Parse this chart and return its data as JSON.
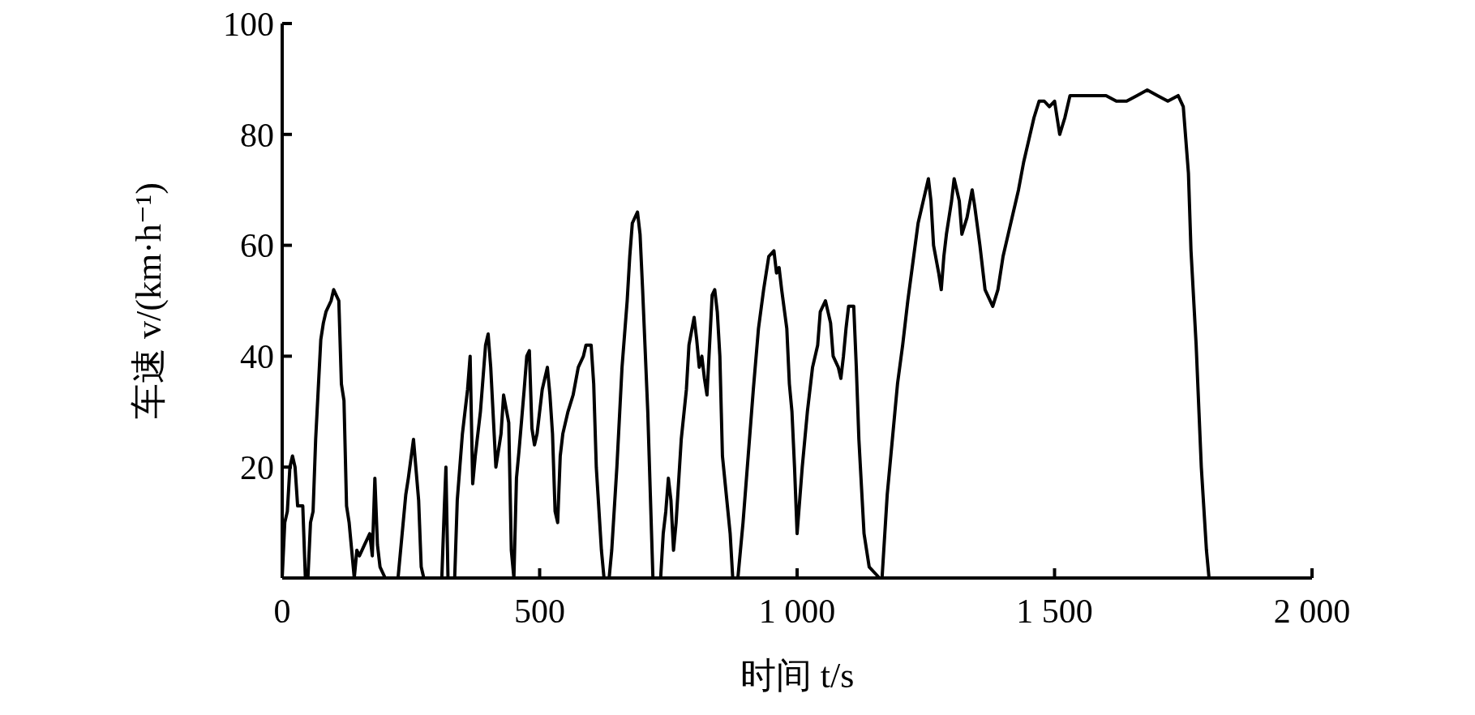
{
  "chart_data": {
    "type": "line",
    "xlabel": "时间 t/s",
    "ylabel": "车速 v/(km·h⁻¹)",
    "xlim": [
      0,
      2000
    ],
    "ylim": [
      0,
      100
    ],
    "xticks": [
      0,
      500,
      {
        "value": 1000,
        "label": "1 000"
      },
      {
        "value": 1500,
        "label": "1 500"
      },
      {
        "value": 2000,
        "label": "2 000"
      }
    ],
    "yticks": [
      20,
      40,
      60,
      80,
      100
    ],
    "grid": false,
    "marker": "none",
    "line_style": "solid",
    "series": [
      {
        "color": "#000000",
        "x": [
          0,
          5,
          10,
          15,
          20,
          25,
          30,
          40,
          45,
          50,
          55,
          60,
          65,
          70,
          75,
          80,
          85,
          95,
          100,
          110,
          115,
          120,
          125,
          130,
          140,
          145,
          150,
          160,
          170,
          175,
          180,
          185,
          190,
          200,
          225,
          240,
          245,
          255,
          265,
          270,
          275,
          310,
          315,
          318,
          322,
          335,
          340,
          345,
          350,
          360,
          365,
          370,
          375,
          385,
          395,
          400,
          405,
          415,
          425,
          430,
          440,
          445,
          450,
          455,
          460,
          470,
          475,
          480,
          485,
          490,
          495,
          505,
          515,
          520,
          525,
          530,
          535,
          540,
          545,
          555,
          565,
          575,
          585,
          590,
          600,
          605,
          610,
          620,
          625,
          635,
          640,
          650,
          660,
          670,
          675,
          680,
          690,
          695,
          700,
          710,
          715,
          720,
          735,
          740,
          745,
          750,
          755,
          760,
          765,
          775,
          785,
          790,
          800,
          805,
          810,
          815,
          820,
          825,
          830,
          835,
          840,
          845,
          850,
          855,
          870,
          875,
          885,
          890,
          895,
          905,
          915,
          925,
          935,
          945,
          955,
          960,
          965,
          970,
          980,
          985,
          990,
          995,
          1000,
          1010,
          1020,
          1030,
          1040,
          1045,
          1055,
          1065,
          1070,
          1080,
          1085,
          1090,
          1095,
          1100,
          1110,
          1115,
          1120,
          1130,
          1140,
          1160,
          1165,
          1175,
          1185,
          1195,
          1205,
          1215,
          1225,
          1235,
          1245,
          1255,
          1260,
          1265,
          1275,
          1280,
          1285,
          1290,
          1300,
          1305,
          1315,
          1320,
          1330,
          1340,
          1345,
          1355,
          1365,
          1380,
          1390,
          1400,
          1410,
          1420,
          1430,
          1440,
          1450,
          1460,
          1470,
          1480,
          1490,
          1500,
          1510,
          1520,
          1530,
          1540,
          1560,
          1580,
          1600,
          1620,
          1640,
          1660,
          1680,
          1700,
          1720,
          1740,
          1750,
          1760,
          1765,
          1775,
          1785,
          1795,
          1800
        ],
        "values": [
          0,
          10,
          12,
          20,
          22,
          20,
          13,
          13,
          0,
          0,
          10,
          12,
          25,
          34,
          43,
          46,
          48,
          50,
          52,
          50,
          35,
          32,
          13,
          10,
          0,
          5,
          4,
          6,
          8,
          4,
          18,
          6,
          2,
          0,
          0,
          15,
          18,
          25,
          14,
          2,
          0,
          0,
          13,
          20,
          0,
          0,
          14,
          20,
          26,
          34,
          40,
          17,
          22,
          30,
          42,
          44,
          38,
          20,
          26,
          33,
          28,
          5,
          0,
          18,
          23,
          34,
          40,
          41,
          27,
          24,
          26,
          34,
          38,
          33,
          26,
          12,
          10,
          22,
          26,
          30,
          33,
          38,
          40,
          42,
          42,
          35,
          20,
          5,
          0,
          0,
          5,
          20,
          38,
          50,
          58,
          64,
          66,
          62,
          52,
          30,
          15,
          0,
          0,
          8,
          12,
          18,
          14,
          5,
          10,
          25,
          34,
          42,
          47,
          43,
          38,
          40,
          36,
          33,
          42,
          51,
          52,
          48,
          40,
          22,
          8,
          0,
          0,
          5,
          10,
          22,
          34,
          45,
          52,
          58,
          59,
          55,
          56,
          52,
          45,
          35,
          30,
          20,
          8,
          20,
          30,
          38,
          42,
          48,
          50,
          46,
          40,
          38,
          36,
          40,
          45,
          49,
          49,
          38,
          25,
          8,
          2,
          0,
          0,
          15,
          25,
          35,
          42,
          50,
          57,
          64,
          68,
          72,
          68,
          60,
          55,
          52,
          58,
          62,
          68,
          72,
          68,
          62,
          65,
          70,
          67,
          60,
          52,
          49,
          52,
          58,
          62,
          66,
          70,
          75,
          79,
          83,
          86,
          86,
          85,
          86,
          80,
          83,
          87,
          87,
          87,
          87,
          87,
          86,
          86,
          87,
          88,
          87,
          86,
          87,
          85,
          73,
          59,
          42,
          20,
          5,
          0
        ]
      }
    ]
  }
}
